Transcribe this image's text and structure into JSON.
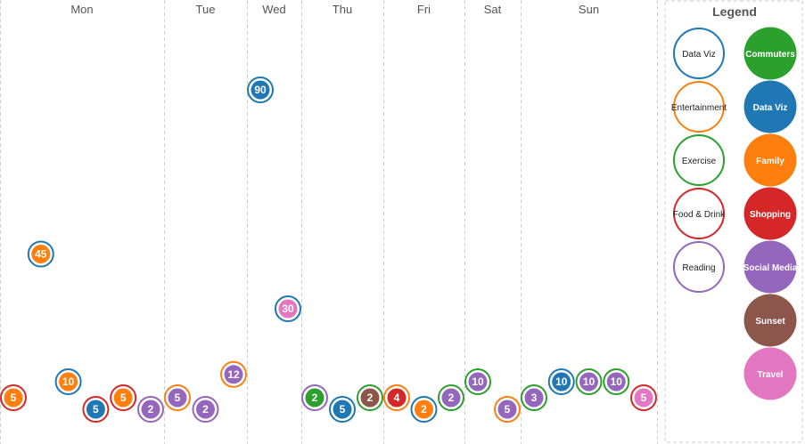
{
  "chart_data": {
    "type": "scatter",
    "days": [
      "Mon",
      "Tue",
      "Wed",
      "Thu",
      "Fri",
      "Sat",
      "Sun"
    ],
    "legend_title": "Legend",
    "ring_legend": [
      {
        "label": "Data Viz",
        "color": "#1f77b4"
      },
      {
        "label": "Entertainment",
        "color": "#ff7f0e"
      },
      {
        "label": "Exercise",
        "color": "#2ca02c"
      },
      {
        "label": "Food & Drink",
        "color": "#d62728"
      },
      {
        "label": "Reading",
        "color": "#9467bd"
      }
    ],
    "fill_legend": [
      {
        "label": "Commuters",
        "color": "#2ca02c"
      },
      {
        "label": "Data Viz",
        "color": "#1f77b4"
      },
      {
        "label": "Family",
        "color": "#ff7f0e"
      },
      {
        "label": "Shopping",
        "color": "#d62728"
      },
      {
        "label": "Social Media",
        "color": "#9467bd"
      },
      {
        "label": "Sunset",
        "color": "#8c564b"
      },
      {
        "label": "Travel",
        "color": "#e377c2"
      }
    ],
    "points": [
      {
        "day": "Mon",
        "value": 5,
        "ring": "Food & Drink",
        "fill": "Family"
      },
      {
        "day": "Mon",
        "value": 45,
        "ring": "Data Viz",
        "fill": "Family"
      },
      {
        "day": "Mon",
        "value": 10,
        "ring": "Data Viz",
        "fill": "Family"
      },
      {
        "day": "Mon",
        "value": 5,
        "ring": "Food & Drink",
        "fill": "Data Viz"
      },
      {
        "day": "Mon",
        "value": 5,
        "ring": "Food & Drink",
        "fill": "Family"
      },
      {
        "day": "Mon",
        "value": 2,
        "ring": "Reading",
        "fill": "Social Media"
      },
      {
        "day": "Tue",
        "value": 5,
        "ring": "Entertainment",
        "fill": "Social Media"
      },
      {
        "day": "Tue",
        "value": 2,
        "ring": "Reading",
        "fill": "Social Media"
      },
      {
        "day": "Tue",
        "value": 12,
        "ring": "Entertainment",
        "fill": "Social Media"
      },
      {
        "day": "Wed",
        "value": 90,
        "ring": "Data Viz",
        "fill": "Data Viz"
      },
      {
        "day": "Wed",
        "value": 30,
        "ring": "Data Viz",
        "fill": "Travel"
      },
      {
        "day": "Thu",
        "value": 2,
        "ring": "Reading",
        "fill": "Commuters"
      },
      {
        "day": "Thu",
        "value": 5,
        "ring": "Data Viz",
        "fill": "Data Viz"
      },
      {
        "day": "Thu",
        "value": 2,
        "ring": "Exercise",
        "fill": "Sunset"
      },
      {
        "day": "Fri",
        "value": 4,
        "ring": "Entertainment",
        "fill": "Shopping"
      },
      {
        "day": "Fri",
        "value": 2,
        "ring": "Data Viz",
        "fill": "Family"
      },
      {
        "day": "Fri",
        "value": 2,
        "ring": "Exercise",
        "fill": "Social Media"
      },
      {
        "day": "Sat",
        "value": 10,
        "ring": "Exercise",
        "fill": "Social Media"
      },
      {
        "day": "Sat",
        "value": 5,
        "ring": "Entertainment",
        "fill": "Social Media"
      },
      {
        "day": "Sun",
        "value": 3,
        "ring": "Exercise",
        "fill": "Social Media"
      },
      {
        "day": "Sun",
        "value": 10,
        "ring": "Data Viz",
        "fill": "Data Viz"
      },
      {
        "day": "Sun",
        "value": 10,
        "ring": "Exercise",
        "fill": "Social Media"
      },
      {
        "day": "Sun",
        "value": 10,
        "ring": "Exercise",
        "fill": "Social Media"
      },
      {
        "day": "Sun",
        "value": 5,
        "ring": "Food & Drink",
        "fill": "Travel"
      }
    ]
  }
}
